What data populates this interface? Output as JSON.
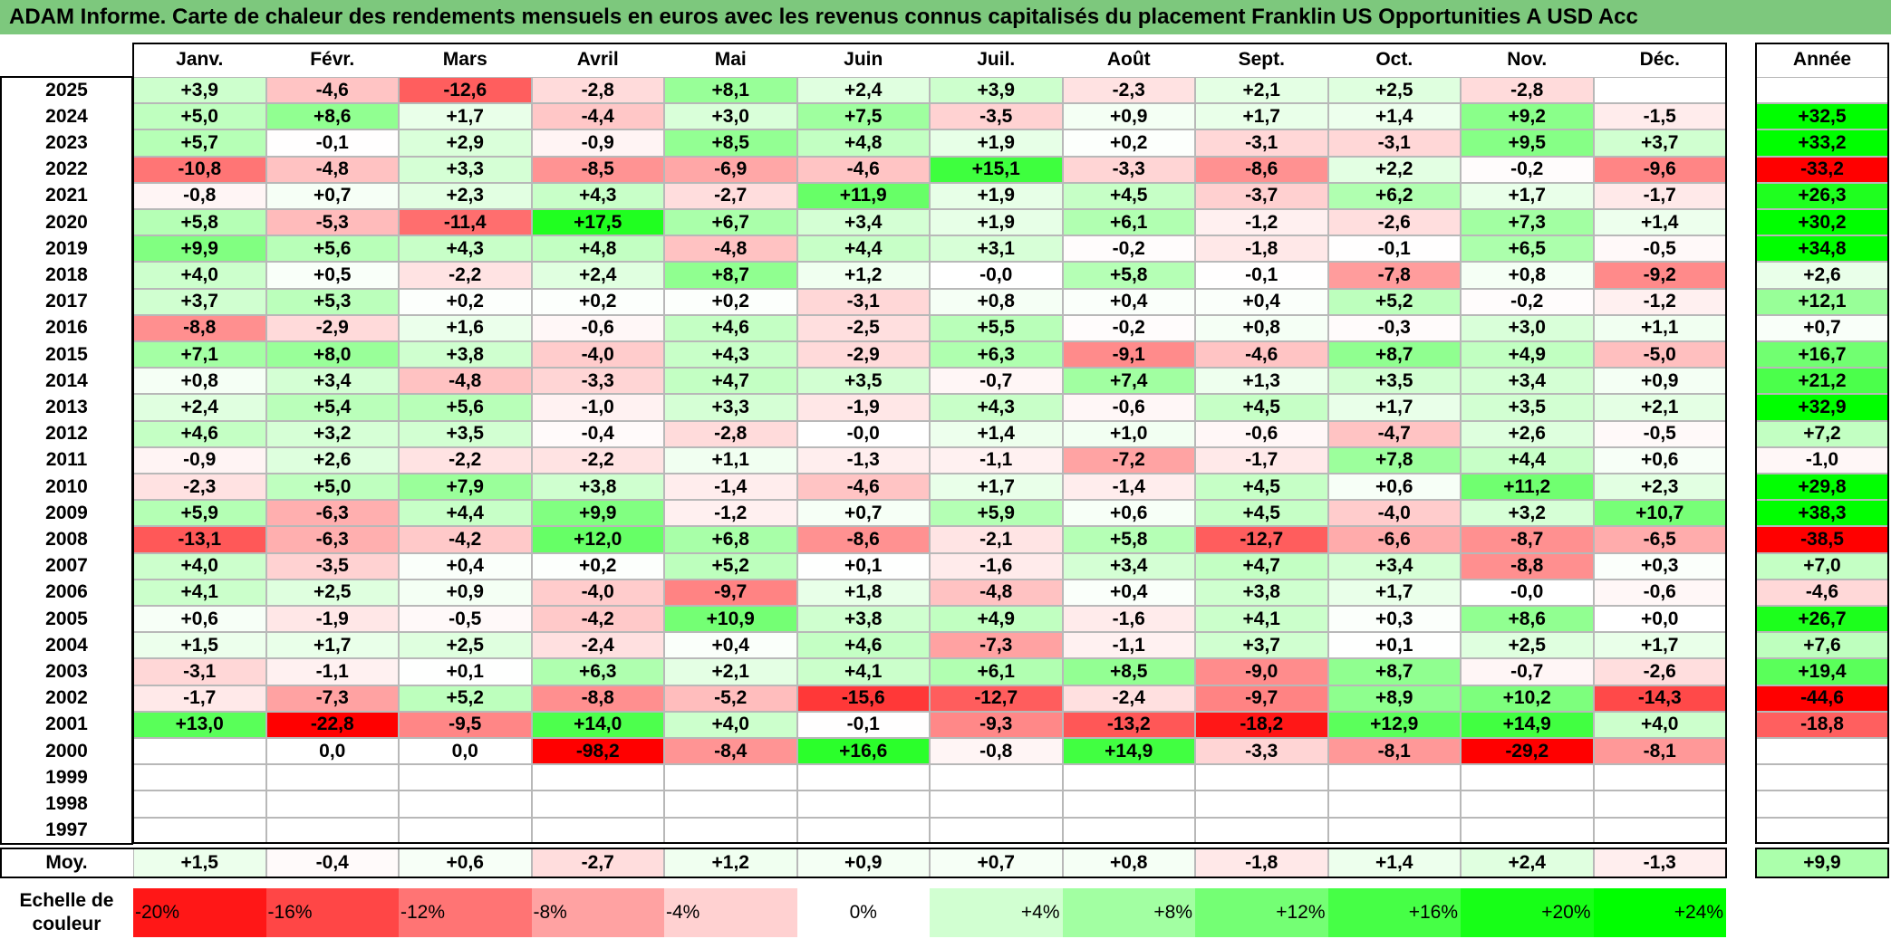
{
  "title": "ADAM Informe. Carte de chaleur des rendements mensuels en euros avec les revenus connus capitalisés du placement Franklin US Opportunities A USD Acc",
  "chart_data": {
    "type": "heatmap",
    "columns": [
      "Janv.",
      "Févr.",
      "Mars",
      "Avril",
      "Mai",
      "Juin",
      "Juil.",
      "Août",
      "Sept.",
      "Oct.",
      "Nov.",
      "Déc."
    ],
    "annual_header": "Année",
    "rows": [
      {
        "year": "2025",
        "values": [
          "+3,9",
          "-4,6",
          "-12,6",
          "-2,8",
          "+8,1",
          "+2,4",
          "+3,9",
          "-2,3",
          "+2,1",
          "+2,5",
          "-2,8",
          ""
        ],
        "annual": ""
      },
      {
        "year": "2024",
        "values": [
          "+5,0",
          "+8,6",
          "+1,7",
          "-4,4",
          "+3,0",
          "+7,5",
          "-3,5",
          "+0,9",
          "+1,7",
          "+1,4",
          "+9,2",
          "-1,5"
        ],
        "annual": "+32,5"
      },
      {
        "year": "2023",
        "values": [
          "+5,7",
          "-0,1",
          "+2,9",
          "-0,9",
          "+8,5",
          "+4,8",
          "+1,9",
          "+0,2",
          "-3,1",
          "-3,1",
          "+9,5",
          "+3,7"
        ],
        "annual": "+33,2"
      },
      {
        "year": "2022",
        "values": [
          "-10,8",
          "-4,8",
          "+3,3",
          "-8,5",
          "-6,9",
          "-4,6",
          "+15,1",
          "-3,3",
          "-8,6",
          "+2,2",
          "-0,2",
          "-9,6"
        ],
        "annual": "-33,2"
      },
      {
        "year": "2021",
        "values": [
          "-0,8",
          "+0,7",
          "+2,3",
          "+4,3",
          "-2,7",
          "+11,9",
          "+1,9",
          "+4,5",
          "-3,7",
          "+6,2",
          "+1,7",
          "-1,7"
        ],
        "annual": "+26,3"
      },
      {
        "year": "2020",
        "values": [
          "+5,8",
          "-5,3",
          "-11,4",
          "+17,5",
          "+6,7",
          "+3,4",
          "+1,9",
          "+6,1",
          "-1,2",
          "-2,6",
          "+7,3",
          "+1,4"
        ],
        "annual": "+30,2"
      },
      {
        "year": "2019",
        "values": [
          "+9,9",
          "+5,6",
          "+4,3",
          "+4,8",
          "-4,8",
          "+4,4",
          "+3,1",
          "-0,2",
          "-1,8",
          "-0,1",
          "+6,5",
          "-0,5"
        ],
        "annual": "+34,8"
      },
      {
        "year": "2018",
        "values": [
          "+4,0",
          "+0,5",
          "-2,2",
          "+2,4",
          "+8,7",
          "+1,2",
          "-0,0",
          "+5,8",
          "-0,1",
          "-7,8",
          "+0,8",
          "-9,2"
        ],
        "annual": "+2,6"
      },
      {
        "year": "2017",
        "values": [
          "+3,7",
          "+5,3",
          "+0,2",
          "+0,2",
          "+0,2",
          "-3,1",
          "+0,8",
          "+0,4",
          "+0,4",
          "+5,2",
          "-0,2",
          "-1,2"
        ],
        "annual": "+12,1"
      },
      {
        "year": "2016",
        "values": [
          "-8,8",
          "-2,9",
          "+1,6",
          "-0,6",
          "+4,6",
          "-2,5",
          "+5,5",
          "-0,2",
          "+0,8",
          "-0,3",
          "+3,0",
          "+1,1"
        ],
        "annual": "+0,7"
      },
      {
        "year": "2015",
        "values": [
          "+7,1",
          "+8,0",
          "+3,8",
          "-4,0",
          "+4,3",
          "-2,9",
          "+6,3",
          "-9,1",
          "-4,6",
          "+8,7",
          "+4,9",
          "-5,0"
        ],
        "annual": "+16,7"
      },
      {
        "year": "2014",
        "values": [
          "+0,8",
          "+3,4",
          "-4,8",
          "-3,3",
          "+4,7",
          "+3,5",
          "-0,7",
          "+7,4",
          "+1,3",
          "+3,5",
          "+3,4",
          "+0,9"
        ],
        "annual": "+21,2"
      },
      {
        "year": "2013",
        "values": [
          "+2,4",
          "+5,4",
          "+5,6",
          "-1,0",
          "+3,3",
          "-1,9",
          "+4,3",
          "-0,6",
          "+4,5",
          "+1,7",
          "+3,5",
          "+2,1"
        ],
        "annual": "+32,9"
      },
      {
        "year": "2012",
        "values": [
          "+4,6",
          "+3,2",
          "+3,5",
          "-0,4",
          "-2,8",
          "-0,0",
          "+1,4",
          "+1,0",
          "-0,6",
          "-4,7",
          "+2,6",
          "-0,5"
        ],
        "annual": "+7,2"
      },
      {
        "year": "2011",
        "values": [
          "-0,9",
          "+2,6",
          "-2,2",
          "-2,2",
          "+1,1",
          "-1,3",
          "-1,1",
          "-7,2",
          "-1,7",
          "+7,8",
          "+4,4",
          "+0,6"
        ],
        "annual": "-1,0"
      },
      {
        "year": "2010",
        "values": [
          "-2,3",
          "+5,0",
          "+7,9",
          "+3,8",
          "-1,4",
          "-4,6",
          "+1,7",
          "-1,4",
          "+4,5",
          "+0,6",
          "+11,2",
          "+2,3"
        ],
        "annual": "+29,8"
      },
      {
        "year": "2009",
        "values": [
          "+5,9",
          "-6,3",
          "+4,4",
          "+9,9",
          "-1,2",
          "+0,7",
          "+5,9",
          "+0,6",
          "+4,5",
          "-4,0",
          "+3,2",
          "+10,7"
        ],
        "annual": "+38,3"
      },
      {
        "year": "2008",
        "values": [
          "-13,1",
          "-6,3",
          "-4,2",
          "+12,0",
          "+6,8",
          "-8,6",
          "-2,1",
          "+5,8",
          "-12,7",
          "-6,6",
          "-8,7",
          "-6,5"
        ],
        "annual": "-38,5"
      },
      {
        "year": "2007",
        "values": [
          "+4,0",
          "-3,5",
          "+0,4",
          "+0,2",
          "+5,2",
          "+0,1",
          "-1,6",
          "+3,4",
          "+4,7",
          "+3,4",
          "-8,8",
          "+0,3"
        ],
        "annual": "+7,0"
      },
      {
        "year": "2006",
        "values": [
          "+4,1",
          "+2,5",
          "+0,9",
          "-4,0",
          "-9,7",
          "+1,8",
          "-4,8",
          "+0,4",
          "+3,8",
          "+1,7",
          "-0,0",
          "-0,6"
        ],
        "annual": "-4,6"
      },
      {
        "year": "2005",
        "values": [
          "+0,6",
          "-1,9",
          "-0,5",
          "-4,2",
          "+10,9",
          "+3,8",
          "+4,9",
          "-1,6",
          "+4,1",
          "+0,3",
          "+8,6",
          "+0,0"
        ],
        "annual": "+26,7"
      },
      {
        "year": "2004",
        "values": [
          "+1,5",
          "+1,7",
          "+2,5",
          "-2,4",
          "+0,4",
          "+4,6",
          "-7,3",
          "-1,1",
          "+3,7",
          "+0,1",
          "+2,5",
          "+1,7"
        ],
        "annual": "+7,6"
      },
      {
        "year": "2003",
        "values": [
          "-3,1",
          "-1,1",
          "+0,1",
          "+6,3",
          "+2,1",
          "+4,1",
          "+6,1",
          "+8,5",
          "-9,0",
          "+8,7",
          "-0,7",
          "-2,6"
        ],
        "annual": "+19,4"
      },
      {
        "year": "2002",
        "values": [
          "-1,7",
          "-7,3",
          "+5,2",
          "-8,8",
          "-5,2",
          "-15,6",
          "-12,7",
          "-2,4",
          "-9,7",
          "+8,9",
          "+10,2",
          "-14,3"
        ],
        "annual": "-44,6"
      },
      {
        "year": "2001",
        "values": [
          "+13,0",
          "-22,8",
          "-9,5",
          "+14,0",
          "+4,0",
          "-0,1",
          "-9,3",
          "-13,2",
          "-18,2",
          "+12,9",
          "+14,9",
          "+4,0"
        ],
        "annual": "-18,8"
      },
      {
        "year": "2000",
        "values": [
          "",
          "0,0",
          "0,0",
          "-98,2",
          "-8,4",
          "+16,6",
          "-0,8",
          "+14,9",
          "-3,3",
          "-8,1",
          "-29,2",
          "-8,1"
        ],
        "annual": ""
      },
      {
        "year": "1999",
        "values": [
          "",
          "",
          "",
          "",
          "",
          "",
          "",
          "",
          "",
          "",
          "",
          ""
        ],
        "annual": ""
      },
      {
        "year": "1998",
        "values": [
          "",
          "",
          "",
          "",
          "",
          "",
          "",
          "",
          "",
          "",
          "",
          ""
        ],
        "annual": ""
      },
      {
        "year": "1997",
        "values": [
          "",
          "",
          "",
          "",
          "",
          "",
          "",
          "",
          "",
          "",
          "",
          ""
        ],
        "annual": ""
      }
    ],
    "average": {
      "label": "Moy.",
      "values": [
        "+1,5",
        "-0,4",
        "+0,6",
        "-2,7",
        "+1,2",
        "+0,9",
        "+0,7",
        "+0,8",
        "-1,8",
        "+1,4",
        "+2,4",
        "-1,3"
      ],
      "annual": "+9,9"
    },
    "legend": {
      "label": "Echelle de couleur",
      "items": [
        {
          "text": "-20%",
          "value": -20
        },
        {
          "text": "-16%",
          "value": -16
        },
        {
          "text": "-12%",
          "value": -12
        },
        {
          "text": "-8%",
          "value": -8
        },
        {
          "text": "-4%",
          "value": -4
        },
        {
          "text": "0%",
          "value": 0
        },
        {
          "text": "+4%",
          "value": 4
        },
        {
          "text": "+8%",
          "value": 8
        },
        {
          "text": "+12%",
          "value": 12
        },
        {
          "text": "+16%",
          "value": 16
        },
        {
          "text": "+20%",
          "value": 20
        },
        {
          "text": "+24%",
          "value": 24
        }
      ]
    },
    "colors": {
      "negative_max": "#ff0000",
      "positive_max": "#00ff00",
      "neutral": "#ffffff",
      "title_bg": "#7dc87d"
    }
  }
}
